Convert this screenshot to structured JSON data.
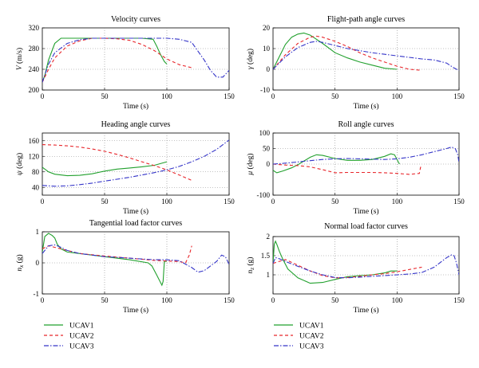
{
  "series_styles": [
    {
      "name": "UCAV1",
      "color": "#21a02d",
      "dash": ""
    },
    {
      "name": "UCAV2",
      "color": "#e8262b",
      "dash": "4,3"
    },
    {
      "name": "UCAV3",
      "color": "#3434c8",
      "dash": "6,2,1.5,2"
    }
  ],
  "time_label": "Time (s)",
  "chart_data": [
    {
      "type": "line",
      "title": "Velocity curves",
      "ylabel_sym": "V",
      "ylabel_unit": " (m/s)",
      "xlabel": "Time (s)",
      "xlim": [
        0,
        150
      ],
      "ylim": [
        200,
        320
      ],
      "xticks": [
        0,
        50,
        100,
        150
      ],
      "yticks": [
        200,
        240,
        280,
        320
      ],
      "grid": true,
      "series": [
        {
          "x": [
            0,
            2,
            5,
            10,
            15,
            20,
            50,
            80,
            89,
            92,
            95,
            98,
            100
          ],
          "y": [
            215,
            228,
            258,
            290,
            300,
            300,
            300,
            300,
            298,
            284,
            268,
            255,
            250
          ]
        },
        {
          "x": [
            0,
            5,
            10,
            20,
            30,
            40,
            50,
            60,
            70,
            80,
            90,
            100,
            110,
            120
          ],
          "y": [
            215,
            240,
            262,
            285,
            295,
            300,
            300,
            299,
            296,
            288,
            276,
            260,
            249,
            243
          ]
        },
        {
          "x": [
            0,
            5,
            10,
            20,
            30,
            40,
            50,
            60,
            80,
            100,
            110,
            120,
            130,
            135,
            140,
            145,
            150
          ],
          "y": [
            215,
            250,
            272,
            290,
            297,
            300,
            300,
            300,
            300,
            300,
            298,
            292,
            258,
            238,
            225,
            225,
            238
          ]
        }
      ]
    },
    {
      "type": "line",
      "title": "Flight-path angle curves",
      "ylabel_sym": "γ",
      "ylabel_unit": " (deg)",
      "xlabel": "Time (s)",
      "xlim": [
        0,
        150
      ],
      "ylim": [
        -10,
        20
      ],
      "xticks": [
        0,
        50,
        100,
        150
      ],
      "yticks": [
        -10,
        0,
        10,
        20
      ],
      "grid": true,
      "series": [
        {
          "x": [
            0,
            5,
            10,
            15,
            20,
            25,
            30,
            40,
            50,
            60,
            70,
            80,
            90,
            100
          ],
          "y": [
            0,
            6,
            12,
            15.5,
            17,
            17.5,
            16.5,
            12.5,
            8,
            5.5,
            3.5,
            2,
            0.5,
            0
          ]
        },
        {
          "x": [
            0,
            10,
            20,
            30,
            35,
            40,
            50,
            60,
            70,
            80,
            90,
            100,
            110,
            120
          ],
          "y": [
            0,
            7,
            12.5,
            15.5,
            16,
            15.5,
            13.5,
            11,
            8,
            5.5,
            3.5,
            1.5,
            0,
            -0.5
          ]
        },
        {
          "x": [
            0,
            10,
            20,
            30,
            35,
            40,
            50,
            60,
            80,
            100,
            120,
            130,
            140,
            145,
            148,
            150
          ],
          "y": [
            0,
            6,
            10.5,
            13,
            13.5,
            13,
            11.5,
            10,
            8,
            6.5,
            5,
            4.5,
            3,
            1,
            0,
            -0.5
          ]
        }
      ]
    },
    {
      "type": "line",
      "title": "Heading angle curves",
      "ylabel_sym": "ψ",
      "ylabel_unit": " (deg)",
      "xlabel": "Time (s)",
      "xlim": [
        0,
        150
      ],
      "ylim": [
        20,
        180
      ],
      "xticks": [
        0,
        50,
        100,
        150
      ],
      "yticks": [
        40,
        80,
        120,
        160
      ],
      "grid": true,
      "series": [
        {
          "x": [
            0,
            5,
            10,
            20,
            30,
            40,
            50,
            60,
            70,
            80,
            90,
            100
          ],
          "y": [
            92,
            80,
            74,
            70,
            71,
            75,
            82,
            87,
            90,
            93,
            97,
            106
          ]
        },
        {
          "x": [
            0,
            10,
            20,
            30,
            40,
            50,
            60,
            70,
            80,
            90,
            100,
            110,
            120
          ],
          "y": [
            150,
            149,
            147,
            144,
            139,
            133,
            125,
            116,
            106,
            96,
            85,
            72,
            58
          ]
        },
        {
          "x": [
            0,
            10,
            20,
            30,
            40,
            50,
            60,
            70,
            80,
            90,
            100,
            110,
            120,
            130,
            140,
            150
          ],
          "y": [
            45,
            43,
            44,
            47,
            51,
            56,
            61,
            66,
            72,
            78,
            85,
            94,
            106,
            120,
            138,
            162
          ]
        }
      ]
    },
    {
      "type": "line",
      "title": "Roll angle curves",
      "ylabel_sym": "μ",
      "ylabel_unit": " (deg)",
      "xlabel": "Time (s)",
      "xlim": [
        0,
        150
      ],
      "ylim": [
        -100,
        100
      ],
      "xticks": [
        0,
        50,
        100,
        150
      ],
      "yticks": [
        -100,
        0,
        50,
        100
      ],
      "grid": true,
      "series": [
        {
          "x": [
            0,
            3,
            8,
            15,
            20,
            25,
            30,
            35,
            40,
            50,
            60,
            70,
            80,
            90,
            95,
            98,
            100,
            102
          ],
          "y": [
            -20,
            -28,
            -22,
            -12,
            -2,
            10,
            22,
            30,
            28,
            18,
            12,
            12,
            15,
            25,
            33,
            30,
            15,
            0
          ]
        },
        {
          "x": [
            0,
            10,
            20,
            30,
            40,
            50,
            60,
            70,
            80,
            90,
            100,
            110,
            118,
            119,
            120
          ],
          "y": [
            0,
            -3,
            -5,
            -9,
            -18,
            -28,
            -27,
            -27,
            -27,
            -28,
            -30,
            -33,
            -30,
            -10,
            -10
          ]
        },
        {
          "x": [
            0,
            10,
            20,
            30,
            40,
            50,
            60,
            70,
            80,
            90,
            100,
            110,
            120,
            130,
            140,
            144,
            147,
            149,
            150
          ],
          "y": [
            0,
            3,
            7,
            11,
            15,
            17,
            18,
            17,
            16,
            15,
            17,
            22,
            30,
            40,
            50,
            55,
            50,
            30,
            5
          ]
        }
      ]
    },
    {
      "type": "line",
      "title": "Tangential load factor curves",
      "ylabel_sym": "n",
      "ylabel_sub": "x",
      "ylabel_unit": " (g)",
      "xlabel": "Time (s)",
      "xlim": [
        0,
        150
      ],
      "ylim": [
        -1,
        1
      ],
      "xticks": [
        0,
        50,
        100,
        150
      ],
      "yticks": [
        -1,
        0,
        1
      ],
      "grid": true,
      "series": [
        {
          "x": [
            0,
            2,
            5,
            8,
            10,
            12,
            15,
            20,
            30,
            50,
            70,
            85,
            88,
            92,
            96,
            97,
            98,
            100
          ],
          "y": [
            0.35,
            0.85,
            0.95,
            0.88,
            0.8,
            0.6,
            0.45,
            0.35,
            0.3,
            0.2,
            0.1,
            0,
            -0.1,
            -0.4,
            -0.72,
            -0.6,
            0.05,
            0.05
          ]
        },
        {
          "x": [
            0,
            5,
            10,
            20,
            30,
            50,
            70,
            90,
            110,
            115,
            118,
            120
          ],
          "y": [
            0.45,
            0.55,
            0.5,
            0.4,
            0.3,
            0.22,
            0.15,
            0.08,
            0.04,
            0,
            0.25,
            0.55
          ]
        },
        {
          "x": [
            0,
            5,
            10,
            15,
            20,
            30,
            50,
            70,
            90,
            100,
            110,
            120,
            125,
            130,
            140,
            144,
            147,
            150
          ],
          "y": [
            0.3,
            0.55,
            0.58,
            0.5,
            0.4,
            0.3,
            0.2,
            0.15,
            0.1,
            0.1,
            0.07,
            -0.15,
            -0.3,
            -0.25,
            0.05,
            0.25,
            0.2,
            -0.05
          ]
        }
      ]
    },
    {
      "type": "line",
      "title": "Normal load factor curves",
      "ylabel_sym": "n",
      "ylabel_sub": "z",
      "ylabel_unit": " (g)",
      "xlabel": "Time (s)",
      "xlim": [
        0,
        150
      ],
      "ylim": [
        0.5,
        2
      ],
      "xticks": [
        0,
        50,
        100,
        150
      ],
      "yticks": [
        1,
        1.5,
        2
      ],
      "grid": true,
      "series": [
        {
          "x": [
            0,
            1,
            2,
            3,
            5,
            8,
            12,
            20,
            30,
            40,
            50,
            60,
            70,
            80,
            90,
            95,
            98,
            100
          ],
          "y": [
            1.3,
            1.8,
            1.88,
            1.8,
            1.62,
            1.4,
            1.15,
            0.92,
            0.78,
            0.8,
            0.88,
            0.95,
            0.98,
            1,
            1.05,
            1.1,
            1.1,
            1.1
          ]
        },
        {
          "x": [
            0,
            10,
            20,
            30,
            40,
            50,
            60,
            70,
            80,
            90,
            100,
            110,
            120
          ],
          "y": [
            1.3,
            1.4,
            1.25,
            1.1,
            0.98,
            0.92,
            0.93,
            0.96,
            1,
            1.03,
            1.08,
            1.14,
            1.2
          ]
        },
        {
          "x": [
            0,
            2,
            5,
            10,
            20,
            30,
            40,
            50,
            60,
            70,
            80,
            90,
            100,
            110,
            120,
            130,
            140,
            144,
            146,
            148,
            150
          ],
          "y": [
            1.3,
            1.45,
            1.42,
            1.35,
            1.22,
            1.1,
            1,
            0.93,
            0.92,
            0.94,
            0.96,
            0.98,
            1,
            1.02,
            1.06,
            1.2,
            1.45,
            1.52,
            1.5,
            1.3,
            1.0
          ]
        }
      ]
    }
  ],
  "legends": [
    {
      "entries": [
        "UCAV1",
        "UCAV2",
        "UCAV3"
      ]
    },
    {
      "entries": [
        "UCAV1",
        "UCAV2",
        "UCAV3"
      ]
    }
  ]
}
